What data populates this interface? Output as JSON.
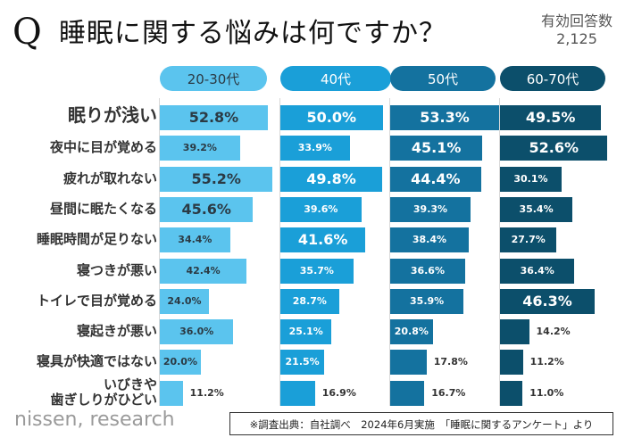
{
  "header": {
    "q_mark": "Q",
    "title": "睡眠に関する悩みは何ですか？",
    "respondents_label": "有効回答数",
    "respondents_value": "2,125"
  },
  "footer": {
    "logo": "nissen, research",
    "source": "※調査出典：自社調べ　2024年6月実施　「睡眠に関するアンケート」より"
  },
  "chart_data": {
    "type": "bar",
    "orientation": "horizontal",
    "title": "睡眠に関する悩みは何ですか？",
    "xlabel": "",
    "ylabel": "",
    "unit": "%",
    "xlim": [
      0,
      60
    ],
    "grid": false,
    "categories": [
      "眠りが浅い",
      "夜中に目が覚める",
      "疲れが取れない",
      "昼間に眠たくなる",
      "睡眠時間が足りない",
      "寝つきが悪い",
      "トイレで目が覚める",
      "寝起きが悪い",
      "寝具が快適ではない",
      "いびきや\n歯ぎしりがひどい"
    ],
    "series": [
      {
        "name": "20-30代",
        "color": "#5bc4ee",
        "text_color": "#2b3a44",
        "values": [
          52.8,
          39.2,
          55.2,
          45.6,
          34.4,
          42.4,
          24.0,
          36.0,
          20.0,
          11.2
        ],
        "labels": [
          "52.8%",
          "39.2%",
          "55.2%",
          "45.6%",
          "34.4%",
          "42.4%",
          "24.0%",
          "36.0%",
          "20.0%",
          "11.2%"
        ]
      },
      {
        "name": "40代",
        "color": "#1a9fd8",
        "text_color": "#ffffff",
        "values": [
          50.0,
          33.9,
          49.8,
          39.6,
          41.6,
          35.7,
          28.7,
          25.1,
          21.5,
          16.9
        ],
        "labels": [
          "50.0%",
          "33.9%",
          "49.8%",
          "39.6%",
          "41.6%",
          "35.7%",
          "28.7%",
          "25.1%",
          "21.5%",
          "16.9%"
        ]
      },
      {
        "name": "50代",
        "color": "#14729f",
        "text_color": "#ffffff",
        "values": [
          53.3,
          45.1,
          44.4,
          39.3,
          38.4,
          36.6,
          35.9,
          20.8,
          17.8,
          16.7
        ],
        "labels": [
          "53.3%",
          "45.1%",
          "44.4%",
          "39.3%",
          "38.4%",
          "36.6%",
          "35.9%",
          "20.8%",
          "17.8%",
          "16.7%"
        ]
      },
      {
        "name": "60-70代",
        "color": "#0c4f6b",
        "text_color": "#ffffff",
        "values": [
          49.5,
          52.6,
          30.1,
          35.4,
          27.7,
          36.4,
          46.3,
          14.2,
          11.2,
          11.0
        ],
        "labels": [
          "49.5%",
          "52.6%",
          "30.1%",
          "35.4%",
          "27.7%",
          "36.4%",
          "46.3%",
          "14.2%",
          "11.2%",
          "11.0%"
        ]
      }
    ],
    "legend": "top"
  }
}
